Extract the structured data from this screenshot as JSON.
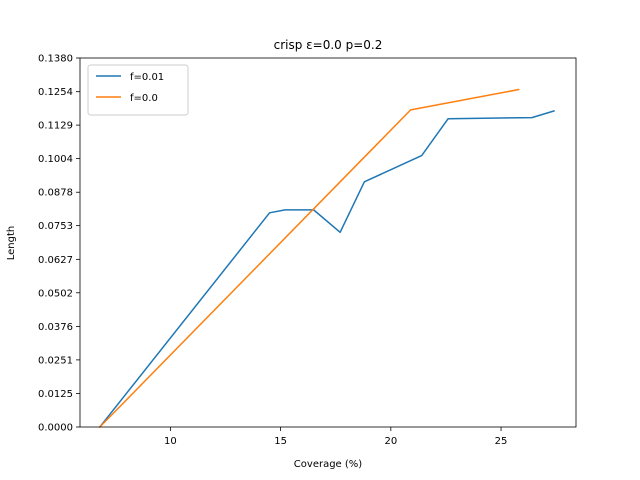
{
  "chart_data": {
    "type": "line",
    "title": "crisp ε=0.0 p=0.2",
    "xlabel": "Coverage (%)",
    "ylabel": "Length",
    "xlim": [
      5.9,
      28.4
    ],
    "ylim": [
      0.0,
      0.138
    ],
    "x_ticks": [
      10,
      15,
      20,
      25
    ],
    "x_tick_labels": [
      "10",
      "15",
      "20",
      "25"
    ],
    "y_ticks": [
      0.0,
      0.0125,
      0.0251,
      0.0376,
      0.0502,
      0.0627,
      0.0753,
      0.0878,
      0.1004,
      0.1129,
      0.1254,
      0.138
    ],
    "y_tick_labels": [
      "0.0000",
      "0.0125",
      "0.0251",
      "0.0376",
      "0.0502",
      "0.0627",
      "0.0753",
      "0.0878",
      "0.1004",
      "0.1129",
      "0.1254",
      "0.1380"
    ],
    "grid": false,
    "legend_position": "upper-left",
    "series": [
      {
        "name": "f=0.01",
        "color": "#1f77b4",
        "x": [
          6.8,
          14.5,
          15.2,
          16.5,
          17.7,
          18.8,
          21.4,
          22.6,
          26.4,
          27.4
        ],
        "y": [
          0.0,
          0.0801,
          0.0812,
          0.0812,
          0.0728,
          0.0917,
          0.1015,
          0.1153,
          0.1157,
          0.1182
        ]
      },
      {
        "name": "f=0.0",
        "color": "#ff7f0e",
        "x": [
          6.8,
          20.9,
          25.8
        ],
        "y": [
          0.0,
          0.1186,
          0.1262
        ]
      }
    ]
  }
}
